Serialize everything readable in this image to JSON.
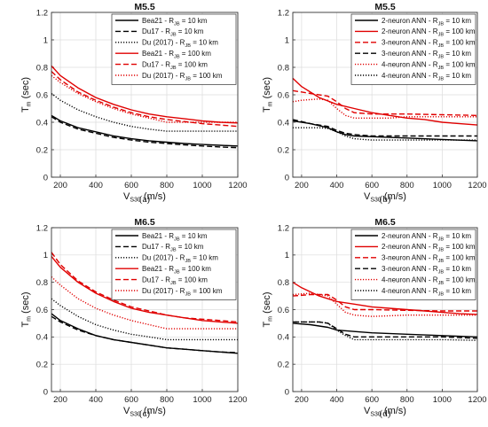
{
  "chart_data": [
    {
      "type": "line",
      "panel_label": "(a)",
      "title": "M5.5",
      "xlabel": {
        "main": "V",
        "sub": "S30",
        "suffix": " (m/s)"
      },
      "ylabel": {
        "main": "T",
        "sub": "m",
        "suffix": " (sec)"
      },
      "xlim": [
        150,
        1200
      ],
      "ylim": [
        0,
        1.2
      ],
      "xticks": [
        200,
        400,
        600,
        800,
        1000,
        1200
      ],
      "yticks": [
        0,
        0.2,
        0.4,
        0.6,
        0.8,
        1,
        1.2
      ],
      "grid": true,
      "legend_position": "top-right",
      "series": [
        {
          "name": "Bea21 - R",
          "name_sub": "JB",
          "name_suffix": " = 10 km",
          "color": "#000000",
          "dash": "solid",
          "x": [
            150,
            200,
            300,
            400,
            500,
            600,
            700,
            800,
            900,
            1000,
            1100,
            1200
          ],
          "y": [
            0.45,
            0.41,
            0.36,
            0.33,
            0.3,
            0.28,
            0.265,
            0.255,
            0.245,
            0.238,
            0.232,
            0.227
          ]
        },
        {
          "name": "Du17 - R",
          "name_sub": "JB",
          "name_suffix": " = 10 km",
          "color": "#000000",
          "dash": "dashed",
          "x": [
            150,
            200,
            300,
            400,
            500,
            600,
            700,
            800,
            900,
            1000,
            1100,
            1200
          ],
          "y": [
            0.44,
            0.4,
            0.35,
            0.32,
            0.29,
            0.27,
            0.255,
            0.245,
            0.235,
            0.227,
            0.22,
            0.215
          ]
        },
        {
          "name": "Du (2017) - R",
          "name_sub": "JB",
          "name_suffix": " = 10 km",
          "color": "#000000",
          "dash": "dotted",
          "x": [
            150,
            200,
            300,
            400,
            500,
            600,
            700,
            800,
            900,
            1000,
            1100,
            1200
          ],
          "y": [
            0.61,
            0.56,
            0.49,
            0.44,
            0.4,
            0.37,
            0.35,
            0.335,
            0.335,
            0.335,
            0.335,
            0.335
          ]
        },
        {
          "name": "Bea21 - R",
          "name_sub": "JB",
          "name_suffix": " = 100 km",
          "color": "#e00000",
          "dash": "solid",
          "x": [
            150,
            200,
            300,
            400,
            500,
            600,
            700,
            800,
            900,
            1000,
            1100,
            1200
          ],
          "y": [
            0.81,
            0.74,
            0.65,
            0.58,
            0.53,
            0.49,
            0.46,
            0.44,
            0.425,
            0.41,
            0.4,
            0.395
          ]
        },
        {
          "name": "Du17 - R",
          "name_sub": "JB",
          "name_suffix": " = 100 km",
          "color": "#e00000",
          "dash": "dashed",
          "x": [
            150,
            200,
            300,
            400,
            500,
            600,
            700,
            800,
            900,
            1000,
            1100,
            1200
          ],
          "y": [
            0.77,
            0.71,
            0.62,
            0.56,
            0.51,
            0.47,
            0.44,
            0.42,
            0.405,
            0.39,
            0.38,
            0.37
          ]
        },
        {
          "name": "Du (2017) - R",
          "name_sub": "JB",
          "name_suffix": " = 100 km",
          "color": "#e00000",
          "dash": "dotted",
          "x": [
            150,
            200,
            300,
            400,
            500,
            600,
            700,
            800,
            900,
            1000,
            1100,
            1200
          ],
          "y": [
            0.74,
            0.69,
            0.61,
            0.55,
            0.5,
            0.46,
            0.43,
            0.4,
            0.4,
            0.4,
            0.4,
            0.4
          ]
        }
      ]
    },
    {
      "type": "line",
      "panel_label": "(b)",
      "title": "M5.5",
      "xlabel": {
        "main": "V",
        "sub": "S30",
        "suffix": " (m/s)"
      },
      "ylabel": {
        "main": "T",
        "sub": "m",
        "suffix": " (sec)"
      },
      "xlim": [
        150,
        1200
      ],
      "ylim": [
        0,
        1.2
      ],
      "xticks": [
        200,
        400,
        600,
        800,
        1000,
        1200
      ],
      "yticks": [
        0,
        0.2,
        0.4,
        0.6,
        0.8,
        1,
        1.2
      ],
      "grid": true,
      "legend_position": "top-right",
      "series": [
        {
          "name": "2-neuron ANN - R",
          "name_sub": "JB",
          "name_suffix": " = 10 km",
          "color": "#000000",
          "dash": "solid",
          "x": [
            150,
            250,
            350,
            400,
            450,
            500,
            600,
            800,
            1000,
            1200
          ],
          "y": [
            0.41,
            0.39,
            0.36,
            0.33,
            0.31,
            0.3,
            0.295,
            0.285,
            0.275,
            0.265
          ]
        },
        {
          "name": "2-neuron ANN - R",
          "name_sub": "JB",
          "name_suffix": " = 100 km",
          "color": "#e00000",
          "dash": "solid",
          "x": [
            150,
            200,
            300,
            400,
            500,
            600,
            700,
            800,
            900,
            1000,
            1100,
            1200
          ],
          "y": [
            0.72,
            0.66,
            0.58,
            0.53,
            0.5,
            0.47,
            0.45,
            0.43,
            0.42,
            0.4,
            0.39,
            0.38
          ]
        },
        {
          "name": "3-neuron ANN - R",
          "name_sub": "JB",
          "name_suffix": " = 100 km",
          "color": "#e00000",
          "dash": "dashed",
          "x": [
            150,
            250,
            350,
            400,
            450,
            500,
            600,
            800,
            1000,
            1200
          ],
          "y": [
            0.63,
            0.61,
            0.59,
            0.55,
            0.5,
            0.47,
            0.46,
            0.46,
            0.455,
            0.45
          ]
        },
        {
          "name": "3-neuron ANN - R",
          "name_sub": "JB",
          "name_suffix": " = 10 km",
          "color": "#000000",
          "dash": "dashed",
          "x": [
            150,
            250,
            350,
            400,
            450,
            500,
            600,
            800,
            1000,
            1200
          ],
          "y": [
            0.42,
            0.39,
            0.37,
            0.34,
            0.32,
            0.31,
            0.3,
            0.3,
            0.3,
            0.3
          ]
        },
        {
          "name": "4-neuron ANN - R",
          "name_sub": "JB",
          "name_suffix": " = 100 km",
          "color": "#e00000",
          "dash": "dotted",
          "x": [
            150,
            200,
            300,
            350,
            400,
            450,
            500,
            600,
            700,
            800,
            900,
            1000,
            1200
          ],
          "y": [
            0.55,
            0.56,
            0.57,
            0.56,
            0.5,
            0.45,
            0.43,
            0.43,
            0.43,
            0.44,
            0.44,
            0.44,
            0.44
          ]
        },
        {
          "name": "4-neuron ANN - R",
          "name_sub": "JB",
          "name_suffix": " = 10 km",
          "color": "#000000",
          "dash": "dotted",
          "x": [
            150,
            300,
            350,
            400,
            450,
            500,
            600,
            800,
            1000,
            1200
          ],
          "y": [
            0.36,
            0.36,
            0.355,
            0.33,
            0.3,
            0.28,
            0.27,
            0.27,
            0.27,
            0.27
          ]
        }
      ]
    },
    {
      "type": "line",
      "panel_label": "(c)",
      "title": "M6.5",
      "xlabel": {
        "main": "V",
        "sub": "S30",
        "suffix": " (m/s)"
      },
      "ylabel": {
        "main": "T",
        "sub": "m",
        "suffix": " (sec)"
      },
      "xlim": [
        150,
        1200
      ],
      "ylim": [
        0,
        1.2
      ],
      "xticks": [
        200,
        400,
        600,
        800,
        1000,
        1200
      ],
      "yticks": [
        0,
        0.2,
        0.4,
        0.6,
        0.8,
        1,
        1.2
      ],
      "grid": true,
      "legend_position": "top-right",
      "series": [
        {
          "name": "Bea21 - R",
          "name_sub": "JB",
          "name_suffix": " = 10 km",
          "color": "#000000",
          "dash": "solid",
          "x": [
            150,
            200,
            300,
            400,
            500,
            600,
            700,
            800,
            900,
            1000,
            1100,
            1200
          ],
          "y": [
            0.57,
            0.52,
            0.46,
            0.41,
            0.38,
            0.36,
            0.34,
            0.32,
            0.31,
            0.3,
            0.29,
            0.28
          ]
        },
        {
          "name": "Du17 - R",
          "name_sub": "JB",
          "name_suffix": " = 10 km",
          "color": "#000000",
          "dash": "dashed",
          "x": [
            150,
            200,
            300,
            400,
            500,
            600,
            700,
            800,
            900,
            1000,
            1100,
            1200
          ],
          "y": [
            0.55,
            0.51,
            0.45,
            0.41,
            0.38,
            0.36,
            0.34,
            0.32,
            0.31,
            0.3,
            0.29,
            0.285
          ]
        },
        {
          "name": "Du (2017) - R",
          "name_sub": "JB",
          "name_suffix": " = 10 km",
          "color": "#000000",
          "dash": "dotted",
          "x": [
            150,
            200,
            300,
            400,
            500,
            600,
            700,
            800,
            900,
            1000,
            1100,
            1200
          ],
          "y": [
            0.68,
            0.63,
            0.55,
            0.49,
            0.45,
            0.42,
            0.4,
            0.38,
            0.38,
            0.38,
            0.38,
            0.38
          ]
        },
        {
          "name": "Bea21 - R",
          "name_sub": "JB",
          "name_suffix": " = 100 km",
          "color": "#e00000",
          "dash": "solid",
          "x": [
            150,
            200,
            300,
            400,
            500,
            600,
            700,
            800,
            900,
            1000,
            1100,
            1200
          ],
          "y": [
            0.99,
            0.91,
            0.8,
            0.72,
            0.66,
            0.61,
            0.58,
            0.56,
            0.54,
            0.52,
            0.51,
            0.5
          ]
        },
        {
          "name": "Du17 - R",
          "name_sub": "JB",
          "name_suffix": " = 100 km",
          "color": "#e00000",
          "dash": "dashed",
          "x": [
            150,
            200,
            300,
            400,
            500,
            600,
            700,
            800,
            900,
            1000,
            1100,
            1200
          ],
          "y": [
            1.02,
            0.93,
            0.81,
            0.73,
            0.67,
            0.62,
            0.59,
            0.56,
            0.54,
            0.53,
            0.52,
            0.51
          ]
        },
        {
          "name": "Du (2017) - R",
          "name_sub": "JB",
          "name_suffix": " = 100 km",
          "color": "#e00000",
          "dash": "dotted",
          "x": [
            150,
            200,
            300,
            400,
            500,
            600,
            700,
            800,
            900,
            1000,
            1100,
            1200
          ],
          "y": [
            0.84,
            0.78,
            0.68,
            0.61,
            0.56,
            0.52,
            0.49,
            0.46,
            0.46,
            0.46,
            0.46,
            0.46
          ]
        }
      ]
    },
    {
      "type": "line",
      "panel_label": "(d)",
      "title": "M6.5",
      "xlabel": {
        "main": "V",
        "sub": "S30",
        "suffix": " (m/s)"
      },
      "ylabel": {
        "main": "T",
        "sub": "m",
        "suffix": " (sec)"
      },
      "xlim": [
        150,
        1200
      ],
      "ylim": [
        0,
        1.2
      ],
      "xticks": [
        200,
        400,
        600,
        800,
        1000,
        1200
      ],
      "yticks": [
        0,
        0.2,
        0.4,
        0.6,
        0.8,
        1,
        1.2
      ],
      "grid": true,
      "legend_position": "top-right",
      "series": [
        {
          "name": "2-neuron ANN - R",
          "name_sub": "JB",
          "name_suffix": " = 10 km",
          "color": "#000000",
          "dash": "solid",
          "x": [
            150,
            250,
            350,
            400,
            500,
            600,
            800,
            1000,
            1200
          ],
          "y": [
            0.5,
            0.49,
            0.47,
            0.45,
            0.44,
            0.43,
            0.42,
            0.41,
            0.4
          ]
        },
        {
          "name": "2-neuron ANN - R",
          "name_sub": "JB",
          "name_suffix": " = 100 km",
          "color": "#e00000",
          "dash": "solid",
          "x": [
            150,
            200,
            300,
            400,
            500,
            600,
            700,
            800,
            900,
            1000,
            1100,
            1200
          ],
          "y": [
            0.8,
            0.76,
            0.7,
            0.66,
            0.64,
            0.62,
            0.61,
            0.6,
            0.59,
            0.58,
            0.57,
            0.565
          ]
        },
        {
          "name": "3-neuron ANN - R",
          "name_sub": "JB",
          "name_suffix": " = 100 km",
          "color": "#e00000",
          "dash": "dashed",
          "x": [
            150,
            250,
            350,
            400,
            450,
            500,
            600,
            800,
            1000,
            1200
          ],
          "y": [
            0.7,
            0.71,
            0.71,
            0.67,
            0.62,
            0.6,
            0.6,
            0.595,
            0.59,
            0.59
          ]
        },
        {
          "name": "3-neuron ANN - R",
          "name_sub": "JB",
          "name_suffix": " = 10 km",
          "color": "#000000",
          "dash": "dashed",
          "x": [
            150,
            300,
            350,
            400,
            450,
            500,
            600,
            800,
            1000,
            1200
          ],
          "y": [
            0.51,
            0.51,
            0.5,
            0.46,
            0.42,
            0.4,
            0.4,
            0.4,
            0.4,
            0.39
          ]
        },
        {
          "name": "4-neuron ANN - R",
          "name_sub": "JB",
          "name_suffix": " = 100 km",
          "color": "#e00000",
          "dash": "dotted",
          "x": [
            150,
            250,
            350,
            400,
            450,
            500,
            600,
            800,
            1000,
            1200
          ],
          "y": [
            0.71,
            0.72,
            0.7,
            0.64,
            0.58,
            0.56,
            0.55,
            0.56,
            0.56,
            0.56
          ]
        },
        {
          "name": "4-neuron ANN - R",
          "name_sub": "JB",
          "name_suffix": " = 10 km",
          "color": "#000000",
          "dash": "dotted",
          "x": [
            150,
            300,
            350,
            400,
            450,
            500,
            600,
            800,
            1000,
            1200
          ],
          "y": [
            0.51,
            0.51,
            0.5,
            0.45,
            0.41,
            0.38,
            0.38,
            0.38,
            0.38,
            0.375
          ]
        }
      ]
    }
  ]
}
